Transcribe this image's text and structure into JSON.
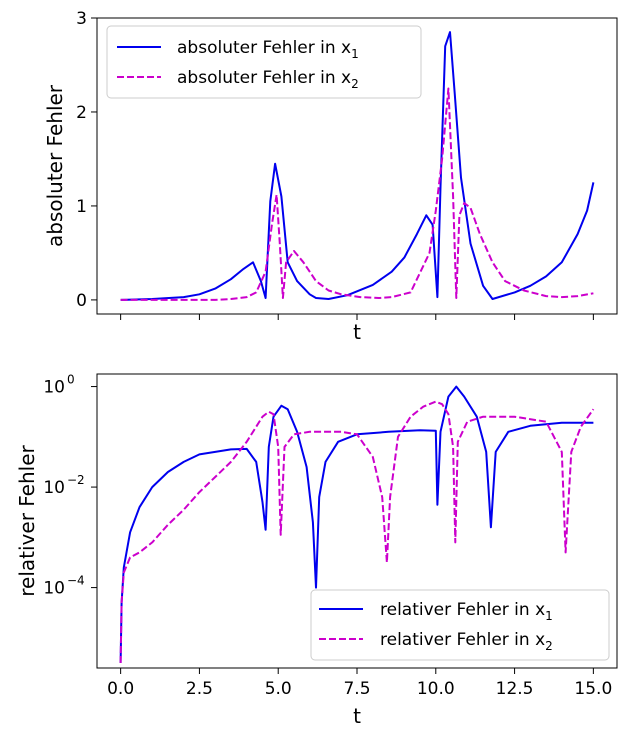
{
  "chart_data": [
    {
      "type": "line",
      "xlabel": "t",
      "ylabel": "absoluter Fehler",
      "xlim": [
        -0.75,
        15.75
      ],
      "ylim": [
        -0.15,
        3.0
      ],
      "y_scale": "linear",
      "yticks": [
        0,
        1,
        2,
        3
      ],
      "yticklabels": [
        "0",
        "1",
        "2",
        "3"
      ],
      "xticks": [
        0,
        2.5,
        5,
        7.5,
        10,
        12.5,
        15
      ],
      "show_xticklabels": false,
      "grid": false,
      "legend_position": "top-left",
      "series": [
        {
          "name": "absoluter Fehler in x",
          "name_subscript": "1",
          "color": "#0000ee",
          "dash": "solid",
          "x": [
            0,
            1,
            2,
            2.5,
            3,
            3.5,
            3.9,
            4.2,
            4.45,
            4.6,
            4.75,
            4.9,
            5.1,
            5.3,
            5.6,
            6,
            6.2,
            6.6,
            7.2,
            8,
            8.6,
            9,
            9.4,
            9.7,
            9.9,
            10.05,
            10.15,
            10.3,
            10.45,
            10.6,
            10.8,
            11.1,
            11.5,
            11.8,
            12.5,
            13,
            13.5,
            14,
            14.5,
            14.8,
            15
          ],
          "y": [
            0,
            0.01,
            0.03,
            0.06,
            0.12,
            0.22,
            0.33,
            0.4,
            0.2,
            0.02,
            1.05,
            1.45,
            1.1,
            0.4,
            0.2,
            0.06,
            0.02,
            0.01,
            0.05,
            0.16,
            0.3,
            0.45,
            0.7,
            0.9,
            0.8,
            0.03,
            1.2,
            2.7,
            2.85,
            2.2,
            1.3,
            0.6,
            0.15,
            0.01,
            0.08,
            0.15,
            0.25,
            0.4,
            0.7,
            0.95,
            1.25
          ]
        },
        {
          "name": "absoluter Fehler in x",
          "name_subscript": "2",
          "color": "#cc00cc",
          "dash": "dashed",
          "x": [
            0,
            2,
            3,
            3.5,
            4,
            4.3,
            4.6,
            4.8,
            4.95,
            5.05,
            5.15,
            5.25,
            5.5,
            5.8,
            6.2,
            6.6,
            7,
            7.6,
            8.2,
            8.6,
            9.2,
            9.8,
            10,
            10.2,
            10.4,
            10.55,
            10.65,
            10.75,
            10.9,
            11.1,
            11.4,
            11.8,
            12.2,
            12.8,
            13.5,
            14,
            14.5,
            15
          ],
          "y": [
            0,
            0,
            0,
            0.01,
            0.03,
            0.08,
            0.3,
            0.8,
            1.12,
            0.6,
            0.02,
            0.4,
            0.52,
            0.4,
            0.2,
            0.1,
            0.06,
            0.03,
            0.02,
            0.03,
            0.08,
            0.5,
            0.95,
            1.5,
            2.25,
            1.1,
            0.02,
            0.9,
            1.03,
            0.98,
            0.7,
            0.4,
            0.2,
            0.1,
            0.04,
            0.03,
            0.04,
            0.07
          ]
        }
      ]
    },
    {
      "type": "line",
      "xlabel": "t",
      "ylabel": "relativer Fehler",
      "xlim": [
        -0.75,
        15.75
      ],
      "y_scale": "log",
      "ylim_log10": [
        -5.6,
        0.25
      ],
      "yticks_log10": [
        0,
        -2,
        -4
      ],
      "yticklabels": [
        {
          "base": "10",
          "exp": "0"
        },
        {
          "base": "10",
          "exp": "−2"
        },
        {
          "base": "10",
          "exp": "−4"
        }
      ],
      "xticks": [
        0,
        2.5,
        5,
        7.5,
        10,
        12.5,
        15
      ],
      "xticklabels": [
        "0.0",
        "2.5",
        "5.0",
        "7.5",
        "10.0",
        "12.5",
        "15.0"
      ],
      "grid": false,
      "legend_position": "bottom-right",
      "series": [
        {
          "name": "relativer Fehler in x",
          "name_subscript": "1",
          "color": "#0000ee",
          "dash": "solid",
          "x": [
            0,
            0.03,
            0.1,
            0.3,
            0.6,
            1,
            1.5,
            2,
            2.5,
            3,
            3.5,
            4,
            4.3,
            4.5,
            4.6,
            4.7,
            4.85,
            5.1,
            5.3,
            5.6,
            5.9,
            6.1,
            6.2,
            6.3,
            6.5,
            6.9,
            7.5,
            8.5,
            9.5,
            10,
            10.05,
            10.15,
            10.4,
            10.65,
            10.9,
            11.3,
            11.6,
            11.75,
            11.9,
            12.3,
            13,
            14,
            15
          ],
          "y_log10": [
            -5.5,
            -4.3,
            -3.6,
            -2.9,
            -2.4,
            -2.0,
            -1.7,
            -1.5,
            -1.35,
            -1.3,
            -1.25,
            -1.24,
            -1.5,
            -2.3,
            -2.85,
            -1.2,
            -0.6,
            -0.38,
            -0.45,
            -0.9,
            -1.6,
            -2.7,
            -4.0,
            -2.2,
            -1.5,
            -1.1,
            -0.95,
            -0.9,
            -0.87,
            -0.88,
            -2.35,
            -0.9,
            -0.2,
            0,
            -0.2,
            -0.6,
            -1.3,
            -2.8,
            -1.3,
            -0.9,
            -0.78,
            -0.72,
            -0.72
          ]
        },
        {
          "name": "relativer Fehler in x",
          "name_subscript": "2",
          "color": "#cc00cc",
          "dash": "dashed",
          "x": [
            0,
            0.03,
            0.1,
            0.3,
            0.6,
            1,
            1.5,
            2,
            2.5,
            3,
            3.5,
            4,
            4.5,
            4.7,
            4.85,
            5,
            5.08,
            5.2,
            5.5,
            6,
            7,
            7.5,
            8,
            8.3,
            8.45,
            8.55,
            8.8,
            9.2,
            9.6,
            10,
            10.2,
            10.4,
            10.55,
            10.62,
            10.7,
            11,
            11.5,
            12.5,
            13.5,
            14,
            14.12,
            14.3,
            14.6,
            15
          ],
          "y_log10": [
            -5.5,
            -4.3,
            -3.7,
            -3.4,
            -3.3,
            -3.1,
            -2.75,
            -2.45,
            -2.1,
            -1.8,
            -1.5,
            -1.1,
            -0.6,
            -0.5,
            -0.55,
            -1.2,
            -2.95,
            -1.2,
            -0.95,
            -0.9,
            -0.9,
            -0.95,
            -1.4,
            -2.2,
            -3.5,
            -2.2,
            -1.0,
            -0.6,
            -0.4,
            -0.3,
            -0.35,
            -0.55,
            -1.2,
            -3.1,
            -1.1,
            -0.7,
            -0.6,
            -0.6,
            -0.7,
            -1.3,
            -3.3,
            -1.3,
            -0.8,
            -0.45
          ]
        }
      ]
    }
  ]
}
